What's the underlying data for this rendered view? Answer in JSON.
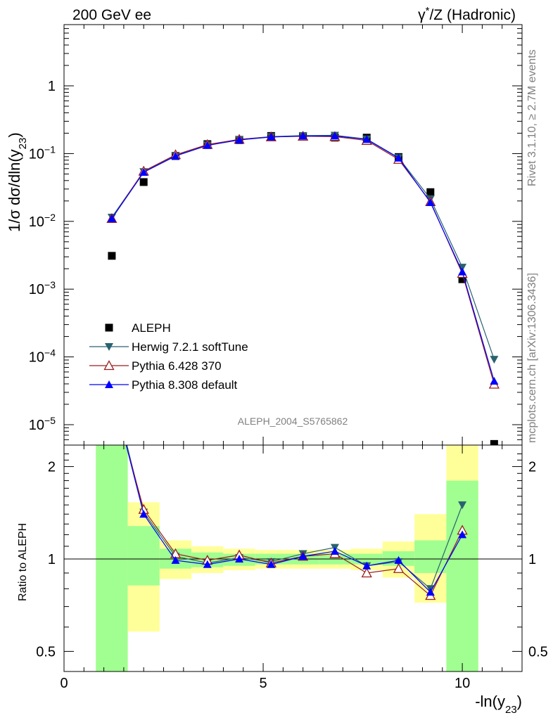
{
  "header": {
    "left_title": "200 GeV ee",
    "right_title": "γ*/Z (Hadronic)"
  },
  "side_labels": {
    "rivet": "Rivet 3.1.10, ≥ 2.7M events",
    "mcplots": "mcplots.cern.ch [arXiv:1306.3436]"
  },
  "analysis_label": "ALEPH_2004_S5765862",
  "colors": {
    "data": "#000000",
    "herwig": "#2a6270",
    "pythia6": "#9b1c1c",
    "pythia8": "#0000ff",
    "band_inner": "#a0ff90",
    "band_outer": "#ffff99"
  },
  "chart_data": [
    {
      "type": "scatter",
      "panel": "main",
      "ylabel": "1/σ dσ/dln(y23)",
      "xlabel": "",
      "yscale": "log",
      "xlim": [
        0,
        11.5
      ],
      "ylim": [
        5e-06,
        8
      ],
      "yticks": [
        {
          "v": 1e-05,
          "base": "10",
          "exp": "−5"
        },
        {
          "v": 0.0001,
          "base": "10",
          "exp": "−4"
        },
        {
          "v": 0.001,
          "base": "10",
          "exp": "−3"
        },
        {
          "v": 0.01,
          "base": "10",
          "exp": "−2"
        },
        {
          "v": 0.1,
          "base": "10",
          "exp": "−1"
        },
        {
          "v": 1,
          "base": "1",
          "exp": ""
        }
      ],
      "legend_position": "lower-left",
      "series": [
        {
          "name": "ALEPH",
          "marker": "square",
          "x": [
            1.2,
            2.0,
            2.8,
            3.6,
            4.4,
            5.2,
            6.0,
            6.8,
            7.6,
            8.4,
            9.2,
            10.0,
            10.8
          ],
          "y": [
            0.0031,
            0.038,
            0.092,
            0.138,
            0.158,
            0.182,
            0.18,
            0.172,
            0.172,
            0.089,
            0.027,
            0.0014,
            5.2e-06
          ]
        },
        {
          "name": "Herwig 7.2.1 softTune",
          "marker": "triangle-down",
          "x": [
            1.2,
            2.0,
            2.8,
            3.6,
            4.4,
            5.2,
            6.0,
            6.8,
            7.6,
            8.4,
            9.2,
            10.0,
            10.8
          ],
          "y": [
            0.0115,
            0.054,
            0.094,
            0.134,
            0.162,
            0.178,
            0.184,
            0.186,
            0.164,
            0.087,
            0.0215,
            0.0021,
            9.2e-05
          ]
        },
        {
          "name": "Pythia 6.428 370",
          "marker": "triangle-up-open",
          "x": [
            1.2,
            2.0,
            2.8,
            3.6,
            4.4,
            5.2,
            6.0,
            6.8,
            7.6,
            8.4,
            9.2,
            10.0,
            10.8
          ],
          "y": [
            0.011,
            0.055,
            0.096,
            0.136,
            0.162,
            0.176,
            0.18,
            0.178,
            0.156,
            0.082,
            0.0195,
            0.0017,
            3.95e-05
          ]
        },
        {
          "name": "Pythia 8.308 default",
          "marker": "triangle-up",
          "x": [
            1.2,
            2.0,
            2.8,
            3.6,
            4.4,
            5.2,
            6.0,
            6.8,
            7.6,
            8.4,
            9.2,
            10.0,
            10.8
          ],
          "y": [
            0.011,
            0.053,
            0.092,
            0.132,
            0.159,
            0.176,
            0.182,
            0.182,
            0.162,
            0.086,
            0.019,
            0.0018,
            4.4e-05
          ]
        }
      ]
    },
    {
      "type": "line",
      "panel": "ratio",
      "ylabel": "Ratio to ALEPH",
      "xlabel": "-ln(y23)",
      "yscale": "log",
      "xlim": [
        0,
        11.5
      ],
      "ylim": [
        0.43,
        2.35
      ],
      "xticks": [
        0,
        5,
        10
      ],
      "yticks": [
        0.5,
        1,
        2
      ],
      "bands": [
        {
          "x0": 0.8,
          "x1": 1.6,
          "inner": [
            0.3,
            3.0
          ],
          "outer": [
            0.3,
            3.0
          ]
        },
        {
          "x0": 1.6,
          "x1": 2.4,
          "inner": [
            0.82,
            1.28
          ],
          "outer": [
            0.58,
            1.53
          ]
        },
        {
          "x0": 2.4,
          "x1": 3.2,
          "inner": [
            0.93,
            1.08
          ],
          "outer": [
            0.86,
            1.15
          ]
        },
        {
          "x0": 3.2,
          "x1": 4.0,
          "inner": [
            0.94,
            1.05
          ],
          "outer": [
            0.9,
            1.1
          ]
        },
        {
          "x0": 4.0,
          "x1": 4.8,
          "inner": [
            0.95,
            1.04
          ],
          "outer": [
            0.92,
            1.08
          ]
        },
        {
          "x0": 4.8,
          "x1": 5.6,
          "inner": [
            0.96,
            1.04
          ],
          "outer": [
            0.93,
            1.07
          ]
        },
        {
          "x0": 5.6,
          "x1": 6.4,
          "inner": [
            0.96,
            1.04
          ],
          "outer": [
            0.93,
            1.07
          ]
        },
        {
          "x0": 6.4,
          "x1": 7.2,
          "inner": [
            0.96,
            1.04
          ],
          "outer": [
            0.93,
            1.07
          ]
        },
        {
          "x0": 7.2,
          "x1": 8.0,
          "inner": [
            0.96,
            1.04
          ],
          "outer": [
            0.92,
            1.08
          ]
        },
        {
          "x0": 8.0,
          "x1": 8.8,
          "inner": [
            0.95,
            1.06
          ],
          "outer": [
            0.87,
            1.14
          ]
        },
        {
          "x0": 8.8,
          "x1": 9.6,
          "inner": [
            0.9,
            1.15
          ],
          "outer": [
            0.72,
            1.4
          ]
        },
        {
          "x0": 9.6,
          "x1": 10.4,
          "inner": [
            0.3,
            1.8
          ],
          "outer": [
            0.3,
            3.0
          ]
        }
      ],
      "series": [
        {
          "name": "Herwig 7.2.1 softTune",
          "x": [
            1.2,
            2.0,
            2.8,
            3.6,
            4.4,
            5.2,
            6.0,
            6.8,
            7.6,
            8.4,
            9.2,
            10.0
          ],
          "y": [
            3.7,
            1.42,
            1.02,
            0.97,
            1.01,
            0.98,
            1.04,
            1.09,
            0.95,
            0.98,
            0.8,
            1.5
          ]
        },
        {
          "name": "Pythia 6.428 370",
          "x": [
            1.2,
            2.0,
            2.8,
            3.6,
            4.4,
            5.2,
            6.0,
            6.8,
            7.6,
            8.4,
            9.2,
            10.0
          ],
          "y": [
            3.5,
            1.45,
            1.04,
            0.99,
            1.03,
            0.97,
            1.02,
            1.04,
            0.9,
            0.93,
            0.76,
            1.24
          ]
        },
        {
          "name": "Pythia 8.308 default",
          "x": [
            1.2,
            2.0,
            2.8,
            3.6,
            4.4,
            5.2,
            6.0,
            6.8,
            7.6,
            8.4,
            9.2,
            10.0
          ],
          "y": [
            3.6,
            1.4,
            0.99,
            0.96,
            1.0,
            0.96,
            1.02,
            1.06,
            0.95,
            0.99,
            0.78,
            1.2
          ]
        }
      ]
    }
  ]
}
